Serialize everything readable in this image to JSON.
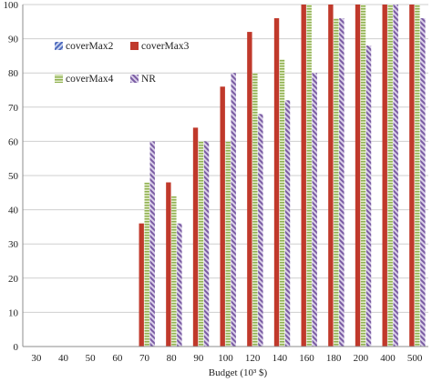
{
  "chart_data": {
    "type": "bar",
    "xlabel": "Budget (10³ $)",
    "ylabel": "",
    "ylim": [
      0,
      100
    ],
    "yticks": [
      0,
      10,
      20,
      30,
      40,
      50,
      60,
      70,
      80,
      90,
      100
    ],
    "grid": "horizontal",
    "legend_position": "top-left",
    "categories": [
      "30",
      "40",
      "50",
      "60",
      "70",
      "80",
      "90",
      "100",
      "120",
      "140",
      "160",
      "180",
      "200",
      "400",
      "500"
    ],
    "series": [
      {
        "name": "coverMax2",
        "color": "#6f86c9",
        "pattern": "diagonal-stripes",
        "values": [
          0,
          0,
          0,
          0,
          0,
          0,
          0,
          0,
          0,
          0,
          0,
          0,
          0,
          0,
          0
        ]
      },
      {
        "name": "coverMax3",
        "color": "#c0392b",
        "pattern": "solid",
        "values": [
          0,
          0,
          0,
          0,
          36,
          48,
          64,
          76,
          92,
          96,
          100,
          100,
          100,
          100,
          100
        ]
      },
      {
        "name": "coverMax4",
        "color": "#9bbb59",
        "pattern": "horizontal-stripes",
        "values": [
          0,
          0,
          0,
          0,
          48,
          44,
          60,
          60,
          80,
          84,
          100,
          96,
          100,
          100,
          100
        ]
      },
      {
        "name": "NR",
        "color": "#8064a2",
        "pattern": "diagonal-stripes",
        "values": [
          0,
          0,
          0,
          0,
          60,
          36,
          60,
          80,
          68,
          72,
          80,
          96,
          88,
          100,
          96
        ]
      }
    ]
  }
}
